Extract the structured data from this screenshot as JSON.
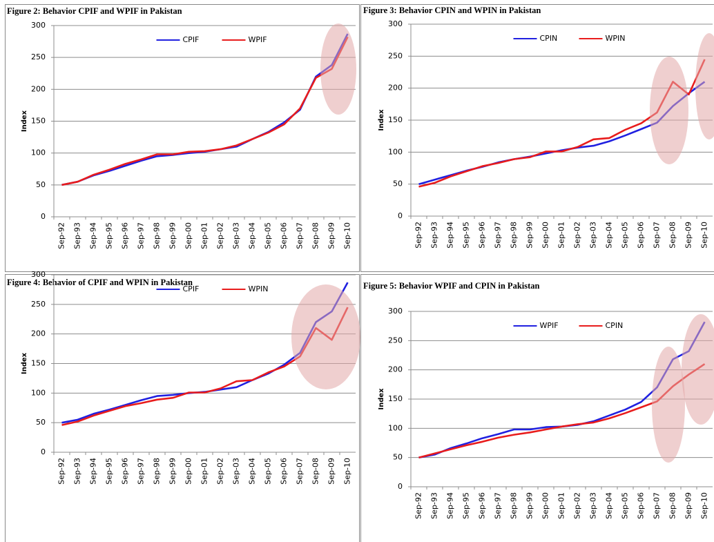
{
  "chart_data": [
    {
      "type": "line",
      "title": "Figure 2: Behavior CPIF and WPIF in Pakistan",
      "y_label": "Index",
      "categories": [
        "Sep-92",
        "Sep-93",
        "Sep-94",
        "Sep-95",
        "Sep-96",
        "Sep-97",
        "Sep-98",
        "Sep-99",
        "Sep-00",
        "Sep-01",
        "Sep-02",
        "Sep-03",
        "Sep-04",
        "Sep-05",
        "Sep-06",
        "Sep-07",
        "Sep-08",
        "Sep-09",
        "Sep-10"
      ],
      "series": [
        {
          "name": "CPIF",
          "color": "#2020e0",
          "values": [
            50,
            55,
            65,
            72,
            80,
            88,
            95,
            97,
            100,
            102,
            106,
            110,
            122,
            133,
            148,
            168,
            220,
            238,
            287
          ]
        },
        {
          "name": "WPIF",
          "color": "#e81c1c",
          "values": [
            50,
            55,
            66,
            74,
            83,
            90,
            98,
            98,
            102,
            103,
            106,
            112,
            122,
            132,
            145,
            170,
            218,
            232,
            282
          ]
        }
      ],
      "ylim": [
        0,
        300
      ],
      "yticks": [
        0,
        50,
        100,
        150,
        200,
        250,
        300
      ],
      "grid": true,
      "legend": "top"
    },
    {
      "type": "line",
      "title": "Figure 3: Behavior CPIN and WPIN in Pakistan",
      "y_label": "Index",
      "categories": [
        "Sep-92",
        "Sep-93",
        "Sep-94",
        "Sep-95",
        "Sep-96",
        "Sep-97",
        "Sep-98",
        "Sep-99",
        "Sep-00",
        "Sep-01",
        "Sep-02",
        "Sep-03",
        "Sep-04",
        "Sep-05",
        "Sep-06",
        "Sep-07",
        "Sep-08",
        "Sep-09",
        "Sep-10"
      ],
      "series": [
        {
          "name": "CPIN",
          "color": "#2020e0",
          "values": [
            50,
            57,
            64,
            71,
            77,
            84,
            89,
            93,
            98,
            103,
            107,
            110,
            117,
            126,
            136,
            146,
            172,
            192,
            210
          ]
        },
        {
          "name": "WPIN",
          "color": "#e81c1c",
          "values": [
            46,
            52,
            62,
            70,
            78,
            83,
            89,
            92,
            101,
            101,
            108,
            120,
            122,
            135,
            145,
            162,
            210,
            190,
            245
          ]
        }
      ],
      "ylim": [
        0,
        300
      ],
      "yticks": [
        0,
        50,
        100,
        150,
        200,
        250,
        300
      ],
      "grid": true,
      "legend": "top"
    },
    {
      "type": "line",
      "title": "Figure 4: Behavior of CPIF and WPIN in Pakistan",
      "y_label": "Index",
      "categories": [
        "Sep-92",
        "Sep-93",
        "Sep-94",
        "Sep-95",
        "Sep-96",
        "Sep-97",
        "Sep-98",
        "Sep-99",
        "Sep-00",
        "Sep-01",
        "Sep-02",
        "Sep-03",
        "Sep-04",
        "Sep-05",
        "Sep-06",
        "Sep-07",
        "Sep-08",
        "Sep-09",
        "Sep-10"
      ],
      "series": [
        {
          "name": "CPIF",
          "color": "#2020e0",
          "values": [
            50,
            55,
            65,
            72,
            80,
            88,
            95,
            97,
            100,
            102,
            106,
            110,
            122,
            133,
            148,
            168,
            220,
            238,
            287
          ]
        },
        {
          "name": "WPIN",
          "color": "#e81c1c",
          "values": [
            46,
            52,
            62,
            70,
            78,
            83,
            89,
            92,
            101,
            101,
            108,
            120,
            122,
            135,
            145,
            162,
            210,
            190,
            245
          ]
        }
      ],
      "ylim": [
        0,
        300
      ],
      "yticks": [
        0,
        50,
        100,
        150,
        200,
        250,
        300
      ],
      "grid": true,
      "legend": "top"
    },
    {
      "type": "line",
      "title": "Figure 5: Behavior WPIF and CPIN in Pakistan",
      "y_label": "Index",
      "categories": [
        "Sep-92",
        "Sep-93",
        "Sep-94",
        "Sep-95",
        "Sep-96",
        "Sep-97",
        "Sep-98",
        "Sep-99",
        "Sep-00",
        "Sep-01",
        "Sep-02",
        "Sep-03",
        "Sep-04",
        "Sep-05",
        "Sep-06",
        "Sep-07",
        "Sep-08",
        "Sep-09",
        "Sep-10"
      ],
      "series": [
        {
          "name": "WPIF",
          "color": "#2020e0",
          "values": [
            50,
            55,
            66,
            74,
            83,
            90,
            98,
            98,
            102,
            103,
            106,
            112,
            122,
            132,
            145,
            170,
            218,
            232,
            282
          ]
        },
        {
          "name": "CPIN",
          "color": "#e81c1c",
          "values": [
            50,
            57,
            64,
            71,
            77,
            84,
            89,
            93,
            98,
            103,
            107,
            110,
            117,
            126,
            136,
            146,
            172,
            192,
            210
          ]
        }
      ],
      "ylim": [
        0,
        300
      ],
      "yticks": [
        0,
        50,
        100,
        150,
        200,
        250,
        300
      ],
      "grid": true,
      "legend": "top"
    }
  ]
}
